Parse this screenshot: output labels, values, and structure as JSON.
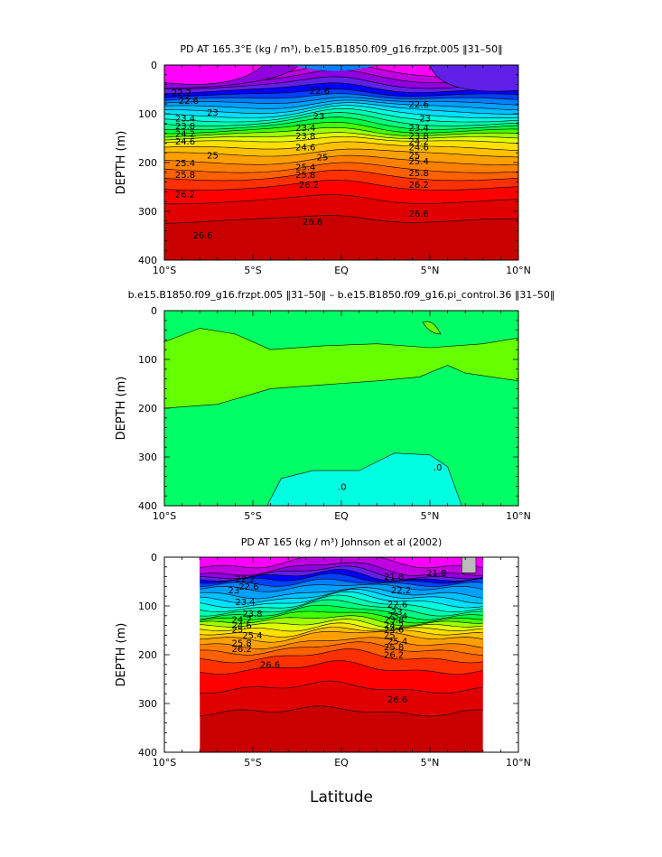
{
  "chart_data": [
    {
      "type": "heatmap",
      "title": "PD AT 165.3°E (kg / m³), b.e15.B1850.f09_g16.frzpt.005 ‖31–50‖",
      "ylabel": "DEPTH (m)",
      "xlabel": "",
      "x_ticklabels": [
        "10°S",
        "5°S",
        "EQ",
        "5°N",
        "10°N"
      ],
      "x_ticks": [
        -10,
        -5,
        0,
        5,
        10
      ],
      "y_ticks": [
        0,
        100,
        200,
        300,
        400
      ],
      "xlim": [
        -10,
        10
      ],
      "ylim": [
        400,
        0
      ],
      "contour_labels": [
        "22.2",
        "22.6",
        "23",
        "23.4",
        "23.8",
        "24.2",
        "24.6",
        "25",
        "25.4",
        "25.8",
        "26.2",
        "26.6",
        "22.6",
        "23",
        "23.4",
        "23.8",
        "24.6",
        "25",
        "25.4",
        "25.8",
        "26.2",
        "26.6",
        "22.6",
        "23",
        "23.4",
        "23.8",
        "24.2",
        "24.6",
        "25",
        "25.4",
        "25.8",
        "26.2",
        "26.6"
      ]
    },
    {
      "type": "heatmap",
      "title": "b.e15.B1850.f09_g16.frzpt.005 ‖31–50‖ – b.e15.B1850.f09_g16.pi_control.36 ‖31–50‖",
      "ylabel": "DEPTH (m)",
      "xlabel": "",
      "x_ticklabels": [
        "10°S",
        "5°S",
        "EQ",
        "5°N",
        "10°N"
      ],
      "x_ticks": [
        -10,
        -5,
        0,
        5,
        10
      ],
      "y_ticks": [
        0,
        100,
        200,
        300,
        400
      ],
      "xlim": [
        -10,
        10
      ],
      "ylim": [
        400,
        0
      ],
      "contour_labels": [
        ".0",
        ".0"
      ]
    },
    {
      "type": "heatmap",
      "title": "PD AT 165 (kg / m³) Johnson et al (2002)",
      "ylabel": "DEPTH (m)",
      "xlabel": "Latitude",
      "x_ticklabels": [
        "10°S",
        "5°S",
        "EQ",
        "5°N",
        "10°N"
      ],
      "x_ticks": [
        -10,
        -5,
        0,
        5,
        10
      ],
      "y_ticks": [
        0,
        100,
        200,
        300,
        400
      ],
      "xlim": [
        -10,
        10
      ],
      "ylim": [
        400,
        0
      ],
      "data_xrange": [
        -8,
        8
      ],
      "contour_labels": [
        "21.8",
        "22.2",
        "22.6",
        "23",
        "23.4",
        "23.8",
        "24.2",
        "24.6",
        "25",
        "25.4",
        "25.8",
        "26.2",
        "26.6",
        "21.8",
        "22.2",
        "22.6",
        "23",
        "23.4",
        "23.8",
        "24.2",
        "24.6",
        "25",
        "25.4",
        "25.8",
        "26.2",
        "26.6"
      ]
    }
  ],
  "colors": {
    "scale": [
      "#ff00ff",
      "#c000e0",
      "#9000e0",
      "#6020e8",
      "#0000ff",
      "#0040ff",
      "#0080ff",
      "#00a0ff",
      "#00c0ff",
      "#00e0ff",
      "#00ffe0",
      "#00ffb0",
      "#00ff80",
      "#00ff40",
      "#40ff00",
      "#a0ff00",
      "#e0ff00",
      "#ffe000",
      "#ffc000",
      "#ffa000",
      "#ff8000",
      "#ff6000",
      "#ff3000",
      "#ff0000",
      "#e00000",
      "#c80000"
    ],
    "diff_green": "#00ff66",
    "diff_lightgreen": "#66ff00",
    "diff_cyan": "#00ffe0",
    "missing": "#bbbbbb"
  }
}
